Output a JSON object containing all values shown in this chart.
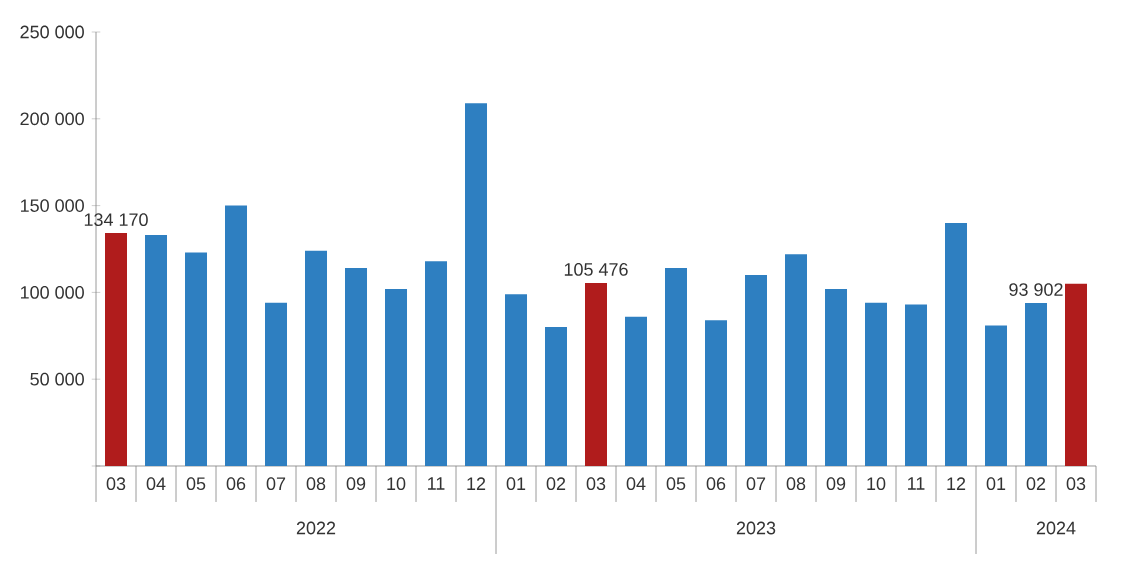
{
  "chart_data": {
    "type": "bar",
    "categories": [
      "03",
      "04",
      "05",
      "06",
      "07",
      "08",
      "09",
      "10",
      "11",
      "12",
      "01",
      "02",
      "03",
      "04",
      "05",
      "06",
      "07",
      "08",
      "09",
      "10",
      "11",
      "12",
      "01",
      "02",
      "03"
    ],
    "values": [
      134170,
      133000,
      123000,
      150000,
      94000,
      124000,
      114000,
      102000,
      118000,
      209000,
      99000,
      80000,
      105476,
      86000,
      114000,
      84000,
      110000,
      122000,
      102000,
      94000,
      93000,
      140000,
      81000,
      93902,
      105000
    ],
    "colors": [
      "#b01c1c",
      "#2e7fc1",
      "#2e7fc1",
      "#2e7fc1",
      "#2e7fc1",
      "#2e7fc1",
      "#2e7fc1",
      "#2e7fc1",
      "#2e7fc1",
      "#2e7fc1",
      "#2e7fc1",
      "#2e7fc1",
      "#b01c1c",
      "#2e7fc1",
      "#2e7fc1",
      "#2e7fc1",
      "#2e7fc1",
      "#2e7fc1",
      "#2e7fc1",
      "#2e7fc1",
      "#2e7fc1",
      "#2e7fc1",
      "#2e7fc1",
      "#2e7fc1",
      "#b01c1c"
    ],
    "value_labels": [
      "134 170",
      null,
      null,
      null,
      null,
      null,
      null,
      null,
      null,
      null,
      null,
      null,
      "105 476",
      null,
      null,
      null,
      null,
      null,
      null,
      null,
      null,
      null,
      null,
      "93 902",
      null
    ],
    "ylim": [
      0,
      250000
    ],
    "yticks": [
      {
        "value": 0,
        "label": null
      },
      {
        "value": 50000,
        "label": "50 000"
      },
      {
        "value": 100000,
        "label": "100 000"
      },
      {
        "value": 150000,
        "label": "150 000"
      },
      {
        "value": 200000,
        "label": "200 000"
      },
      {
        "value": 250000,
        "label": "250 000"
      }
    ],
    "annotations": [
      "2022",
      "2023",
      "2024"
    ],
    "grid": false
  }
}
